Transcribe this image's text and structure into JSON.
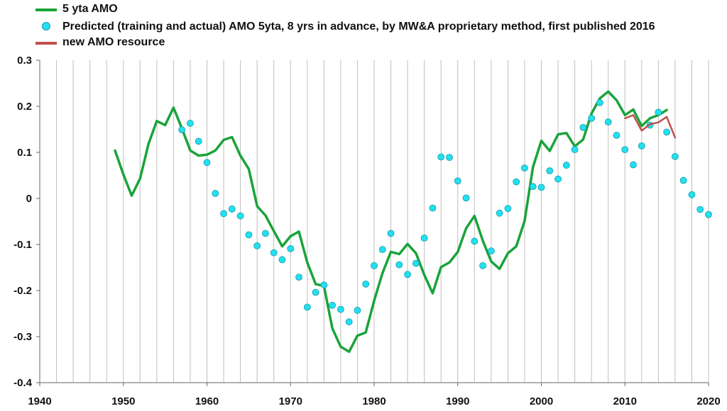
{
  "chart_data": {
    "type": "line",
    "title": "",
    "xlabel": "",
    "ylabel": "",
    "xlim": [
      1940,
      2020
    ],
    "ylim": [
      -0.4,
      0.3
    ],
    "x_ticks": [
      1940,
      1950,
      1960,
      1970,
      1980,
      1990,
      2000,
      2010,
      2020
    ],
    "y_ticks": [
      0.3,
      0.2,
      0.1,
      0,
      -0.1,
      -0.2,
      -0.3,
      -0.4
    ],
    "x_tick_labels": [
      "1940",
      "1950",
      "1960",
      "1970",
      "1980",
      "1990",
      "2000",
      "2010",
      "2020"
    ],
    "y_tick_labels": [
      "0.3",
      "0.2",
      "0.1",
      "0",
      "-0.1",
      "-0.2",
      "-0.3",
      "-0.4"
    ],
    "grid": {
      "x": true,
      "x_step": 2,
      "y": false
    },
    "legend_position": "top-left",
    "series": [
      {
        "name": "5 yta AMO",
        "kind": "line",
        "color": "#1aa33a",
        "x": [
          1949,
          1950,
          1951,
          1952,
          1953,
          1954,
          1955,
          1956,
          1957,
          1958,
          1959,
          1960,
          1961,
          1962,
          1963,
          1964,
          1965,
          1966,
          1967,
          1968,
          1969,
          1970,
          1971,
          1972,
          1973,
          1974,
          1975,
          1976,
          1977,
          1978,
          1979,
          1980,
          1981,
          1982,
          1983,
          1984,
          1985,
          1986,
          1987,
          1988,
          1989,
          1990,
          1991,
          1992,
          1993,
          1994,
          1995,
          1996,
          1997,
          1998,
          1999,
          2000,
          2001,
          2002,
          2003,
          2004,
          2005,
          2006,
          2007,
          2008,
          2009,
          2010,
          2011,
          2012,
          2013,
          2014,
          2015
        ],
        "y": [
          0.104,
          0.052,
          0.006,
          0.043,
          0.118,
          0.168,
          0.159,
          0.197,
          0.152,
          0.104,
          0.093,
          0.095,
          0.104,
          0.127,
          0.133,
          0.093,
          0.064,
          -0.017,
          -0.037,
          -0.071,
          -0.104,
          -0.082,
          -0.072,
          -0.139,
          -0.186,
          -0.19,
          -0.282,
          -0.322,
          -0.333,
          -0.298,
          -0.291,
          -0.222,
          -0.162,
          -0.116,
          -0.121,
          -0.099,
          -0.119,
          -0.166,
          -0.206,
          -0.149,
          -0.139,
          -0.116,
          -0.065,
          -0.038,
          -0.092,
          -0.137,
          -0.153,
          -0.119,
          -0.104,
          -0.049,
          0.068,
          0.125,
          0.103,
          0.139,
          0.142,
          0.113,
          0.128,
          0.184,
          0.217,
          0.232,
          0.213,
          0.181,
          0.193,
          0.157,
          0.174,
          0.181,
          0.192
        ]
      },
      {
        "name": "Predicted (training and actual) AMO 5yta, 8 yrs in advance, by MW&A proprietary method, first published 2016",
        "kind": "scatter",
        "color": "#22e0f0",
        "x": [
          1957,
          1958,
          1959,
          1960,
          1961,
          1962,
          1963,
          1964,
          1965,
          1966,
          1967,
          1968,
          1969,
          1970,
          1971,
          1972,
          1973,
          1974,
          1975,
          1976,
          1977,
          1978,
          1979,
          1980,
          1981,
          1982,
          1983,
          1984,
          1985,
          1986,
          1987,
          1988,
          1989,
          1990,
          1991,
          1992,
          1993,
          1994,
          1995,
          1996,
          1997,
          1998,
          1999,
          2000,
          2001,
          2002,
          2003,
          2004,
          2005,
          2006,
          2007,
          2008,
          2009,
          2010,
          2011,
          2012,
          2013,
          2014,
          2015,
          2016,
          2017,
          2018,
          2019,
          2020
        ],
        "y": [
          0.149,
          0.163,
          0.124,
          0.078,
          0.011,
          -0.033,
          -0.023,
          -0.038,
          -0.079,
          -0.103,
          -0.076,
          -0.118,
          -0.133,
          -0.109,
          -0.171,
          -0.236,
          -0.204,
          -0.188,
          -0.232,
          -0.241,
          -0.268,
          -0.243,
          -0.186,
          -0.146,
          -0.111,
          -0.076,
          -0.144,
          -0.165,
          -0.141,
          -0.086,
          -0.021,
          0.09,
          0.089,
          0.038,
          0.001,
          -0.093,
          -0.146,
          -0.114,
          -0.032,
          -0.022,
          0.036,
          0.066,
          0.026,
          0.024,
          0.06,
          0.042,
          0.072,
          0.106,
          0.154,
          0.174,
          0.208,
          0.166,
          0.137,
          0.106,
          0.073,
          0.114,
          0.159,
          0.187,
          0.144,
          0.091,
          0.039,
          0.008,
          -0.024,
          -0.035
        ]
      },
      {
        "name": "new AMO resource",
        "kind": "line",
        "color": "#c0504d",
        "x": [
          2010,
          2011,
          2012,
          2013,
          2014,
          2015,
          2016
        ],
        "y": [
          0.174,
          0.181,
          0.147,
          0.161,
          0.165,
          0.177,
          0.132
        ]
      }
    ]
  }
}
